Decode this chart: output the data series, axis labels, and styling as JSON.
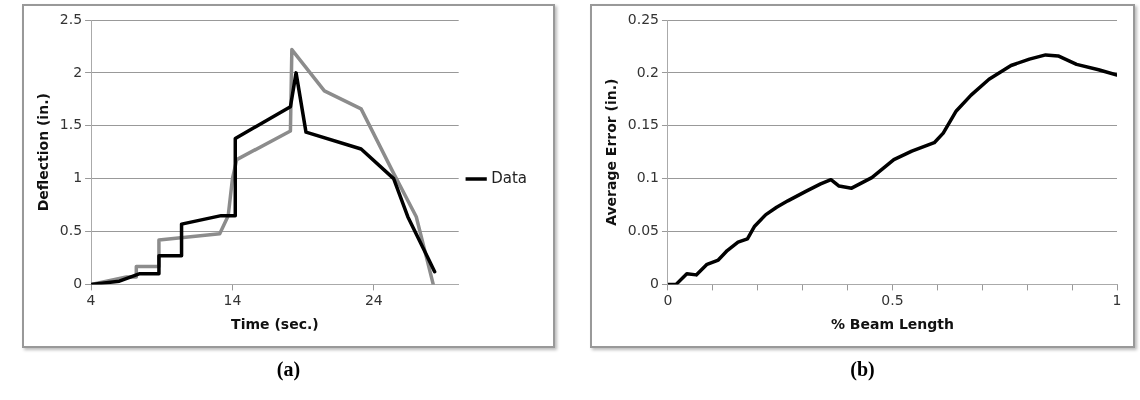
{
  "chart_data": [
    {
      "type": "line",
      "xlabel": "Time (sec.)",
      "ylabel": "Deflection (in.)",
      "xlim": [
        4,
        30
      ],
      "xticks": [
        4,
        14,
        24
      ],
      "ylim": [
        0,
        2.5
      ],
      "yticks": [
        0,
        0.5,
        1,
        1.5,
        2,
        2.5
      ],
      "grid": "y",
      "legend": "right",
      "marker": "none",
      "line_style": "solid",
      "annotations": [
        "(a)"
      ],
      "series": [
        {
          "name": "Data",
          "color": "#000000",
          "x": [
            4,
            6,
            7.4,
            7.4,
            8.8,
            8.8,
            10.4,
            10.4,
            13.2,
            14.2,
            14.2,
            18.1,
            18.5,
            19.2,
            23.1,
            25.4,
            26.4,
            27.5,
            28.3
          ],
          "values": [
            0,
            0.03,
            0.1,
            0.1,
            0.1,
            0.27,
            0.27,
            0.57,
            0.65,
            0.65,
            1.38,
            1.68,
            2.0,
            1.44,
            1.28,
            1.0,
            0.64,
            0.34,
            0.12
          ]
        },
        {
          "name": null,
          "color": "#8c8c8c",
          "x": [
            4,
            6.5,
            7.2,
            7.2,
            8.8,
            8.8,
            13.1,
            13.7,
            14,
            14.3,
            18.1,
            18.2,
            20.5,
            23.1,
            25.4,
            27,
            28.2
          ],
          "values": [
            0,
            0.07,
            0.07,
            0.17,
            0.17,
            0.42,
            0.48,
            0.65,
            1.0,
            1.18,
            1.45,
            2.22,
            1.83,
            1.66,
            1.05,
            0.64,
            0
          ]
        }
      ]
    },
    {
      "type": "line",
      "xlabel": "% Beam Length",
      "ylabel": "Average Error (in.)",
      "xlim": [
        0,
        1
      ],
      "xticks": [
        0,
        {
          "value": 0.1,
          "label": null
        },
        {
          "value": 0.2,
          "label": null
        },
        {
          "value": 0.3,
          "label": null
        },
        {
          "value": 0.4,
          "label": null
        },
        0.5,
        {
          "value": 0.6,
          "label": null
        },
        {
          "value": 0.7,
          "label": null
        },
        {
          "value": 0.8,
          "label": null
        },
        {
          "value": 0.9,
          "label": null
        },
        1
      ],
      "ylim": [
        0,
        0.25
      ],
      "yticks": [
        0,
        0.05,
        0.1,
        0.15,
        0.2,
        0.25
      ],
      "grid": "y",
      "marker": "none",
      "line_style": "solid",
      "annotations": [
        "(b)"
      ],
      "series": [
        {
          "color": "#000000",
          "x": [
            0,
            0.018,
            0.042,
            0.063,
            0.087,
            0.112,
            0.132,
            0.156,
            0.177,
            0.193,
            0.218,
            0.242,
            0.267,
            0.307,
            0.34,
            0.363,
            0.381,
            0.409,
            0.454,
            0.503,
            0.543,
            0.593,
            0.613,
            0.642,
            0.675,
            0.715,
            0.764,
            0.805,
            0.841,
            0.869,
            0.91,
            0.959,
            1.0
          ],
          "values": [
            0,
            0,
            0.01,
            0.009,
            0.019,
            0.023,
            0.032,
            0.04,
            0.043,
            0.055,
            0.066,
            0.073,
            0.079,
            0.088,
            0.095,
            0.099,
            0.093,
            0.091,
            0.101,
            0.118,
            0.126,
            0.134,
            0.143,
            0.164,
            0.179,
            0.194,
            0.207,
            0.213,
            0.217,
            0.216,
            0.208,
            0.203,
            0.198
          ]
        }
      ]
    }
  ]
}
